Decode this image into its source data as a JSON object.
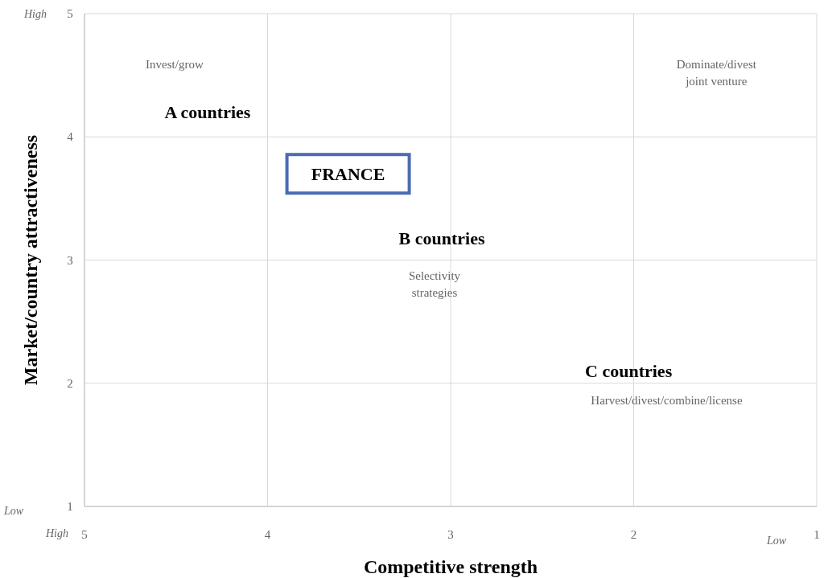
{
  "chart_data": {
    "type": "scatter",
    "xlabel": "Competitive strength",
    "ylabel": "Market/country attractiveness",
    "xlim": [
      5,
      1
    ],
    "ylim": [
      1,
      5
    ],
    "xticks": [
      5,
      4,
      3,
      2,
      1
    ],
    "yticks": [
      1,
      2,
      3,
      4,
      5
    ],
    "grid": true,
    "annotations": [
      "A countries",
      "B countries",
      "C countries",
      "FRANCE",
      "Invest/grow",
      "Dominate/divest joint venture",
      "Selectivity strategies",
      "Harvest/divest/combine/license",
      "High",
      "Low",
      "High",
      "Low"
    ]
  }
}
